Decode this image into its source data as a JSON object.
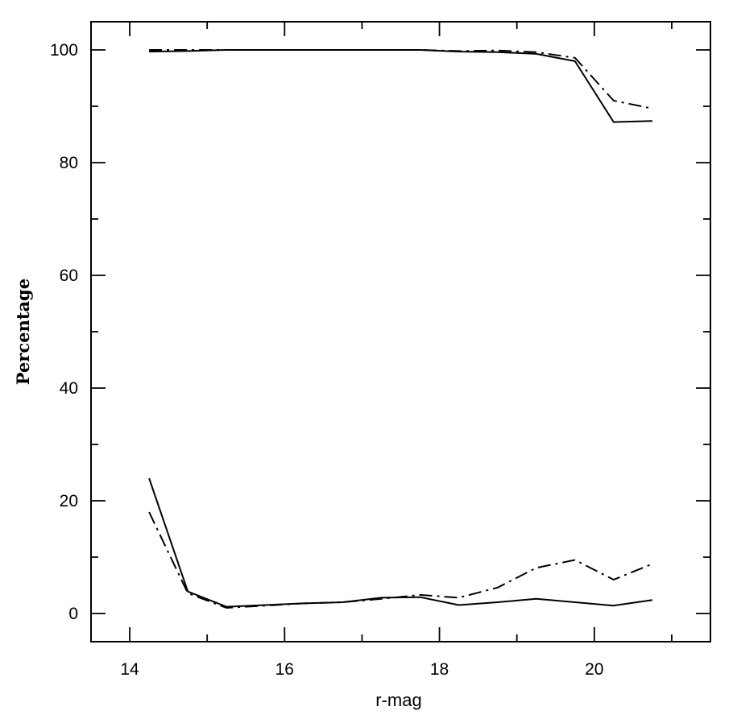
{
  "chart_data": {
    "type": "line",
    "title": "",
    "xlabel": "r-mag",
    "ylabel": "Percentage",
    "xlim": [
      13.5,
      21.5
    ],
    "ylim": [
      -5,
      105
    ],
    "xticks": [
      14,
      16,
      18,
      20
    ],
    "yticks": [
      0,
      20,
      40,
      60,
      80,
      100
    ],
    "x_minor_step": 1,
    "y_minor_step": 10,
    "grid": false,
    "legend": "none",
    "x": [
      14.25,
      14.75,
      15.25,
      15.75,
      16.25,
      16.75,
      17.25,
      17.75,
      18.25,
      18.75,
      19.25,
      19.75,
      20.25,
      20.75
    ],
    "series": [
      {
        "style": "solid",
        "values": [
          99.7,
          99.8,
          100,
          100,
          100,
          100,
          100,
          100,
          99.7,
          99.6,
          99.3,
          98.0,
          87.2,
          87.4
        ]
      },
      {
        "style": "dash-dot",
        "values": [
          100,
          100,
          100,
          100,
          100,
          100,
          100,
          100,
          99.8,
          99.9,
          99.6,
          98.6,
          91.0,
          89.6
        ]
      },
      {
        "style": "solid",
        "values": [
          24.0,
          3.9,
          1.2,
          1.5,
          1.8,
          2.0,
          2.8,
          2.9,
          1.5,
          2.0,
          2.6,
          2.0,
          1.4,
          2.4
        ]
      },
      {
        "style": "dash-dot",
        "values": [
          18.0,
          3.6,
          1.0,
          1.4,
          1.8,
          2.0,
          2.6,
          3.3,
          2.8,
          4.6,
          8.1,
          9.5,
          6.0,
          8.8
        ]
      }
    ]
  }
}
